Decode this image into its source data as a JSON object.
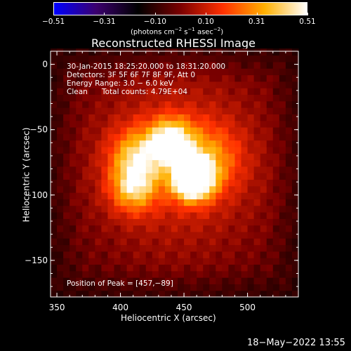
{
  "colorbar": {
    "ticks": [
      "−0.51",
      "−0.31",
      "−0.10",
      "0.10",
      "0.31",
      "0.51"
    ],
    "unit_label": "(photons cm",
    "unit_exp1": "−2",
    "unit_mid": " s",
    "unit_exp2": "−1",
    "unit_mid2": " asec",
    "unit_exp3": "−2",
    "unit_end": ")",
    "colors": [
      "#0000ff",
      "#3b006e",
      "#000000",
      "#7a0000",
      "#ff3000",
      "#ffb000",
      "#ffffff"
    ]
  },
  "title": "Reconstructed RHESSI Image",
  "info": {
    "line1": "30-Jan-2015 18:25:20.000 to 18:31:20.000",
    "line2": "Detectors: 3F 5F 6F 7F 8F 9F, Att 0",
    "line3": "Energy Range: 3.0 − 6.0 keV",
    "line4a": "Clean",
    "line4b": "Total counts: 4.79E+04",
    "peak": "Position of Peak = [457,−89]"
  },
  "footer": "18−May−2022 13:55",
  "chart_data": {
    "type": "heatmap",
    "title": "Reconstructed RHESSI Image",
    "xlabel": "Heliocentric X (arcsec)",
    "ylabel": "Heliocentric Y (arcsec)",
    "xlim": [
      345,
      540
    ],
    "ylim": [
      -178,
      10
    ],
    "xticks": [
      350,
      400,
      450,
      500
    ],
    "yticks": [
      0,
      -50,
      -100,
      -150
    ],
    "xtick_labels": [
      "350",
      "400",
      "450",
      "500"
    ],
    "ytick_labels": [
      "0",
      "−50",
      "−100",
      "−150"
    ],
    "value_range": [
      -0.51,
      0.51
    ],
    "peak": [
      457,
      -89
    ],
    "sources": [
      {
        "x": 457,
        "y": -88,
        "sigma": 11,
        "amp": 0.51
      },
      {
        "x": 440,
        "y": -58,
        "sigma": 12,
        "amp": 0.34
      },
      {
        "x": 413,
        "y": -70,
        "sigma": 15,
        "amp": 0.26
      },
      {
        "x": 410,
        "y": -95,
        "sigma": 13,
        "amp": 0.26
      },
      {
        "x": 470,
        "y": -72,
        "sigma": 18,
        "amp": 0.18
      },
      {
        "x": 445,
        "y": -75,
        "sigma": 55,
        "amp": 0.16
      }
    ]
  }
}
